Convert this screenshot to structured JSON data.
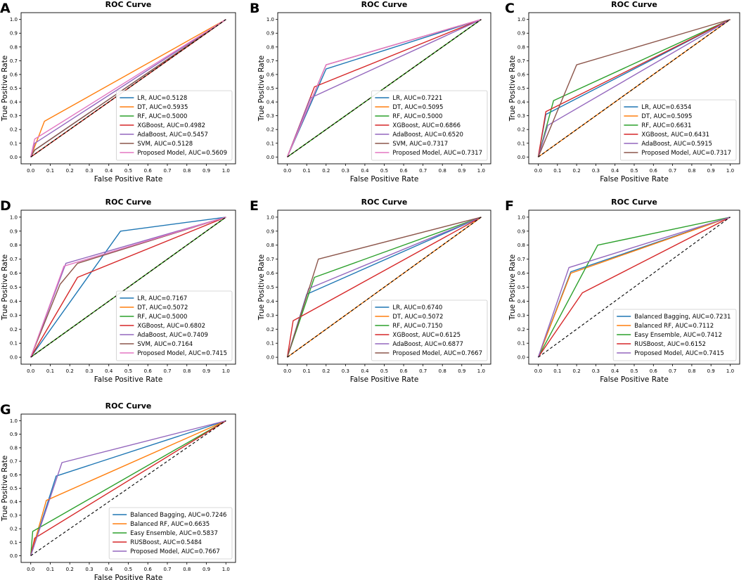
{
  "figure": {
    "panel_count": 7
  },
  "chart_data": [
    {
      "panel": "A",
      "type": "line",
      "title": "ROC Curve",
      "xlabel": "False Positive Rate",
      "ylabel": "True Positive Rate",
      "xlim": [
        0,
        1
      ],
      "ylim": [
        0,
        1
      ],
      "grid": false,
      "legend_loc": "lower-right",
      "xticks": [
        "0.0",
        "0.1",
        "0.2",
        "0.3",
        "0.4",
        "0.5",
        "0.6",
        "0.7",
        "0.8",
        "0.9",
        "1.0"
      ],
      "yticks": [
        "0.0",
        "0.1",
        "0.2",
        "0.3",
        "0.4",
        "0.5",
        "0.6",
        "0.7",
        "0.8",
        "0.9",
        "1.0"
      ],
      "series": [
        {
          "name": "LR, AUC=0.5128",
          "color": "#1f77b4",
          "x": [
            0,
            0.02,
            1
          ],
          "y": [
            0,
            0.05,
            1
          ]
        },
        {
          "name": "DT, AUC=0.5935",
          "color": "#ff7f0e",
          "x": [
            0,
            0.07,
            1
          ],
          "y": [
            0,
            0.26,
            1
          ]
        },
        {
          "name": "RF, AUC=0.5000",
          "color": "#2ca02c",
          "x": [
            0,
            1
          ],
          "y": [
            0,
            1
          ]
        },
        {
          "name": "XGBoost, AUC=0.4982",
          "color": "#d62728",
          "x": [
            0,
            0.02,
            1
          ],
          "y": [
            0,
            0.02,
            1
          ]
        },
        {
          "name": "AdaBoost, AUC=0.5457",
          "color": "#9467bd",
          "x": [
            0,
            0.02,
            1
          ],
          "y": [
            0,
            0.1,
            1
          ]
        },
        {
          "name": "SVM, AUC=0.5128",
          "color": "#8c564b",
          "x": [
            0,
            0.02,
            1
          ],
          "y": [
            0,
            0.05,
            1
          ]
        },
        {
          "name": "Proposed Model, AUC=0.5609",
          "color": "#e377c2",
          "x": [
            0,
            0.02,
            1
          ],
          "y": [
            0,
            0.13,
            1
          ]
        }
      ]
    },
    {
      "panel": "B",
      "type": "line",
      "title": "ROC Curve",
      "xlabel": "False Positive Rate",
      "ylabel": "True Positive Rate",
      "xlim": [
        0,
        1
      ],
      "ylim": [
        0,
        1
      ],
      "grid": false,
      "legend_loc": "lower-right",
      "xticks": [
        "0.0",
        "0.1",
        "0.2",
        "0.3",
        "0.4",
        "0.5",
        "0.6",
        "0.7",
        "0.8",
        "0.9",
        "1.0"
      ],
      "yticks": [
        "0.0",
        "0.1",
        "0.2",
        "0.3",
        "0.4",
        "0.5",
        "0.6",
        "0.7",
        "0.8",
        "0.9",
        "1.0"
      ],
      "series": [
        {
          "name": "LR, AUC=0.7221",
          "color": "#1f77b4",
          "x": [
            0,
            0.2,
            1
          ],
          "y": [
            0,
            0.64,
            1
          ]
        },
        {
          "name": "DT, AUC=0.5095",
          "color": "#ff7f0e",
          "x": [
            0,
            1
          ],
          "y": [
            0,
            1
          ]
        },
        {
          "name": "RF, AUC=0.5000",
          "color": "#2ca02c",
          "x": [
            0,
            1
          ],
          "y": [
            0,
            1
          ]
        },
        {
          "name": "XGBoost, AUC=0.6866",
          "color": "#d62728",
          "x": [
            0,
            0.14,
            1
          ],
          "y": [
            0,
            0.51,
            1
          ]
        },
        {
          "name": "AdaBoost, AUC=0.6520",
          "color": "#9467bd",
          "x": [
            0,
            0.12,
            1
          ],
          "y": [
            0,
            0.43,
            1
          ]
        },
        {
          "name": "SVM, AUC=0.7317",
          "color": "#8c564b",
          "x": [
            0,
            0.2,
            1
          ],
          "y": [
            0,
            0.67,
            1
          ]
        },
        {
          "name": "Proposed Model, AUC=0.7317",
          "color": "#e377c2",
          "x": [
            0,
            0.2,
            1
          ],
          "y": [
            0,
            0.67,
            1
          ]
        }
      ]
    },
    {
      "panel": "C",
      "type": "line",
      "title": "ROC Curve",
      "xlabel": "False Positive Rate",
      "ylabel": "True Positive Rate",
      "xlim": [
        0,
        1
      ],
      "ylim": [
        0,
        1
      ],
      "grid": false,
      "legend_loc": "lower-right",
      "xticks": [
        "0.0",
        "0.1",
        "0.2",
        "0.3",
        "0.4",
        "0.5",
        "0.6",
        "0.7",
        "0.8",
        "0.9",
        "1.0"
      ],
      "yticks": [
        "0.0",
        "0.1",
        "0.2",
        "0.3",
        "0.4",
        "0.5",
        "0.6",
        "0.7",
        "0.8",
        "0.9",
        "1.0"
      ],
      "series": [
        {
          "name": "LR, AUC=0.6354",
          "color": "#1f77b4",
          "x": [
            0,
            0.04,
            1
          ],
          "y": [
            0,
            0.31,
            1
          ]
        },
        {
          "name": "DT, AUC=0.5095",
          "color": "#ff7f0e",
          "x": [
            0,
            1
          ],
          "y": [
            0,
            1
          ]
        },
        {
          "name": "RF, AUC=0.6631",
          "color": "#2ca02c",
          "x": [
            0,
            0.08,
            1
          ],
          "y": [
            0,
            0.41,
            1
          ]
        },
        {
          "name": "XGBoost, AUC=0.6431",
          "color": "#d62728",
          "x": [
            0,
            0.04,
            1
          ],
          "y": [
            0,
            0.33,
            1
          ]
        },
        {
          "name": "AdaBoost, AUC=0.5915",
          "color": "#9467bd",
          "x": [
            0,
            0.05,
            1
          ],
          "y": [
            0,
            0.23,
            1
          ]
        },
        {
          "name": "Proposed Model, AUC=0.7317",
          "color": "#8c564b",
          "x": [
            0,
            0.2,
            1
          ],
          "y": [
            0,
            0.67,
            1
          ]
        }
      ]
    },
    {
      "panel": "D",
      "type": "line",
      "title": "ROC Curve",
      "xlabel": "False Positive Rate",
      "ylabel": "True Positive Rate",
      "xlim": [
        0,
        1
      ],
      "ylim": [
        0,
        1
      ],
      "grid": false,
      "legend_loc": "lower-right",
      "xticks": [
        "0.0",
        "0.1",
        "0.2",
        "0.3",
        "0.4",
        "0.5",
        "0.6",
        "0.7",
        "0.8",
        "0.9",
        "1.0"
      ],
      "yticks": [
        "0.0",
        "0.1",
        "0.2",
        "0.3",
        "0.4",
        "0.5",
        "0.6",
        "0.7",
        "0.8",
        "0.9",
        "1.0"
      ],
      "series": [
        {
          "name": "LR, AUC=0.7167",
          "color": "#1f77b4",
          "x": [
            0,
            0.46,
            1
          ],
          "y": [
            0,
            0.9,
            1
          ]
        },
        {
          "name": "DT, AUC=0.5072",
          "color": "#ff7f0e",
          "x": [
            0,
            1
          ],
          "y": [
            0,
            1
          ]
        },
        {
          "name": "RF, AUC=0.5000",
          "color": "#2ca02c",
          "x": [
            0,
            1
          ],
          "y": [
            0,
            1
          ]
        },
        {
          "name": "XGBoost, AUC=0.6802",
          "color": "#d62728",
          "x": [
            0,
            0.24,
            1
          ],
          "y": [
            0,
            0.57,
            1
          ]
        },
        {
          "name": "AdaBoost, AUC=0.7409",
          "color": "#9467bd",
          "x": [
            0,
            0.18,
            1
          ],
          "y": [
            0,
            0.67,
            1
          ]
        },
        {
          "name": "SVM, AUC=0.7164",
          "color": "#8c564b",
          "x": [
            0,
            0.15,
            0.24,
            1
          ],
          "y": [
            0,
            0.52,
            0.67,
            1
          ]
        },
        {
          "name": "Proposed Model, AUC=0.7415",
          "color": "#e377c2",
          "x": [
            0,
            0.17,
            1
          ],
          "y": [
            0,
            0.65,
            1
          ]
        }
      ]
    },
    {
      "panel": "E",
      "type": "line",
      "title": "ROC Curve",
      "xlabel": "False Positive Rate",
      "ylabel": "True Positive Rate",
      "xlim": [
        0,
        1
      ],
      "ylim": [
        0,
        1
      ],
      "grid": false,
      "legend_loc": "lower-right",
      "xticks": [
        "0.0",
        "0.1",
        "0.2",
        "0.3",
        "0.4",
        "0.5",
        "0.6",
        "0.7",
        "0.8",
        "0.9",
        "1.0"
      ],
      "yticks": [
        "0.0",
        "0.1",
        "0.2",
        "0.3",
        "0.4",
        "0.5",
        "0.6",
        "0.7",
        "0.8",
        "0.9",
        "1.0"
      ],
      "series": [
        {
          "name": "LR, AUC=0.6740",
          "color": "#1f77b4",
          "x": [
            0,
            0.1,
            1
          ],
          "y": [
            0,
            0.45,
            1
          ]
        },
        {
          "name": "DT, AUC=0.5072",
          "color": "#ff7f0e",
          "x": [
            0,
            1
          ],
          "y": [
            0,
            1
          ]
        },
        {
          "name": "RF, AUC=0.7150",
          "color": "#2ca02c",
          "x": [
            0,
            0.14,
            1
          ],
          "y": [
            0,
            0.57,
            1
          ]
        },
        {
          "name": "XGBoost, AUC=0.6125",
          "color": "#d62728",
          "x": [
            0,
            0.03,
            1
          ],
          "y": [
            0,
            0.26,
            1
          ]
        },
        {
          "name": "AdaBoost, AUC=0.6877",
          "color": "#9467bd",
          "x": [
            0,
            0.11,
            1
          ],
          "y": [
            0,
            0.49,
            1
          ]
        },
        {
          "name": "Proposed Model, AUC=0.7667",
          "color": "#8c564b",
          "x": [
            0,
            0.16,
            1
          ],
          "y": [
            0,
            0.7,
            1
          ]
        }
      ]
    },
    {
      "panel": "F",
      "type": "line",
      "title": "ROC Curve",
      "xlabel": "False Positive Rate",
      "ylabel": "True Positive Rate",
      "xlim": [
        0,
        1
      ],
      "ylim": [
        0,
        1
      ],
      "grid": false,
      "legend_loc": "lower-right",
      "xticks": [
        "0.0",
        "0.1",
        "0.2",
        "0.3",
        "0.4",
        "0.5",
        "0.6",
        "0.7",
        "0.8",
        "0.9",
        "1.0"
      ],
      "yticks": [
        "0.0",
        "0.1",
        "0.2",
        "0.3",
        "0.4",
        "0.5",
        "0.6",
        "0.7",
        "0.8",
        "0.9",
        "1.0"
      ],
      "series": [
        {
          "name": "Balanced Bagging, AUC=0.7231",
          "color": "#1f77b4",
          "x": [
            0,
            0.17,
            1
          ],
          "y": [
            0,
            0.61,
            1
          ]
        },
        {
          "name": "Balanced RF, AUC=0.7112",
          "color": "#ff7f0e",
          "x": [
            0,
            0.17,
            1
          ],
          "y": [
            0,
            0.6,
            1
          ]
        },
        {
          "name": "Easy Ensemble, AUC=0.7412",
          "color": "#2ca02c",
          "x": [
            0,
            0.31,
            1
          ],
          "y": [
            0,
            0.8,
            1
          ]
        },
        {
          "name": "RUSBoost, AUC=0.6152",
          "color": "#d62728",
          "x": [
            0,
            0.23,
            1
          ],
          "y": [
            0,
            0.46,
            1
          ]
        },
        {
          "name": "Proposed Model, AUC=0.7415",
          "color": "#9467bd",
          "x": [
            0,
            0.16,
            1
          ],
          "y": [
            0,
            0.64,
            1
          ]
        }
      ]
    },
    {
      "panel": "G",
      "type": "line",
      "title": "ROC Curve",
      "xlabel": "False Positive Rate",
      "ylabel": "True Positive Rate",
      "xlim": [
        0,
        1
      ],
      "ylim": [
        0,
        1
      ],
      "grid": false,
      "legend_loc": "lower-right",
      "xticks": [
        "0.0",
        "0.1",
        "0.2",
        "0.3",
        "0.4",
        "0.5",
        "0.6",
        "0.7",
        "0.8",
        "0.9",
        "1.0"
      ],
      "yticks": [
        "0.0",
        "0.1",
        "0.2",
        "0.3",
        "0.4",
        "0.5",
        "0.6",
        "0.7",
        "0.8",
        "0.9",
        "1.0"
      ],
      "series": [
        {
          "name": "Balanced Bagging, AUC=0.7246",
          "color": "#1f77b4",
          "x": [
            0,
            0.13,
            1
          ],
          "y": [
            0,
            0.59,
            1
          ]
        },
        {
          "name": "Balanced RF, AUC=0.6635",
          "color": "#ff7f0e",
          "x": [
            0,
            0.08,
            1
          ],
          "y": [
            0,
            0.41,
            1
          ]
        },
        {
          "name": "Easy Ensemble, AUC=0.5837",
          "color": "#2ca02c",
          "x": [
            0,
            0.01,
            1
          ],
          "y": [
            0,
            0.18,
            1
          ]
        },
        {
          "name": "RUSBoost, AUC=0.5484",
          "color": "#d62728",
          "x": [
            0,
            0.02,
            1
          ],
          "y": [
            0,
            0.13,
            1
          ]
        },
        {
          "name": "Proposed Model, AUC=0.7667",
          "color": "#9467bd",
          "x": [
            0,
            0.16,
            1
          ],
          "y": [
            0,
            0.69,
            1
          ]
        }
      ]
    }
  ]
}
